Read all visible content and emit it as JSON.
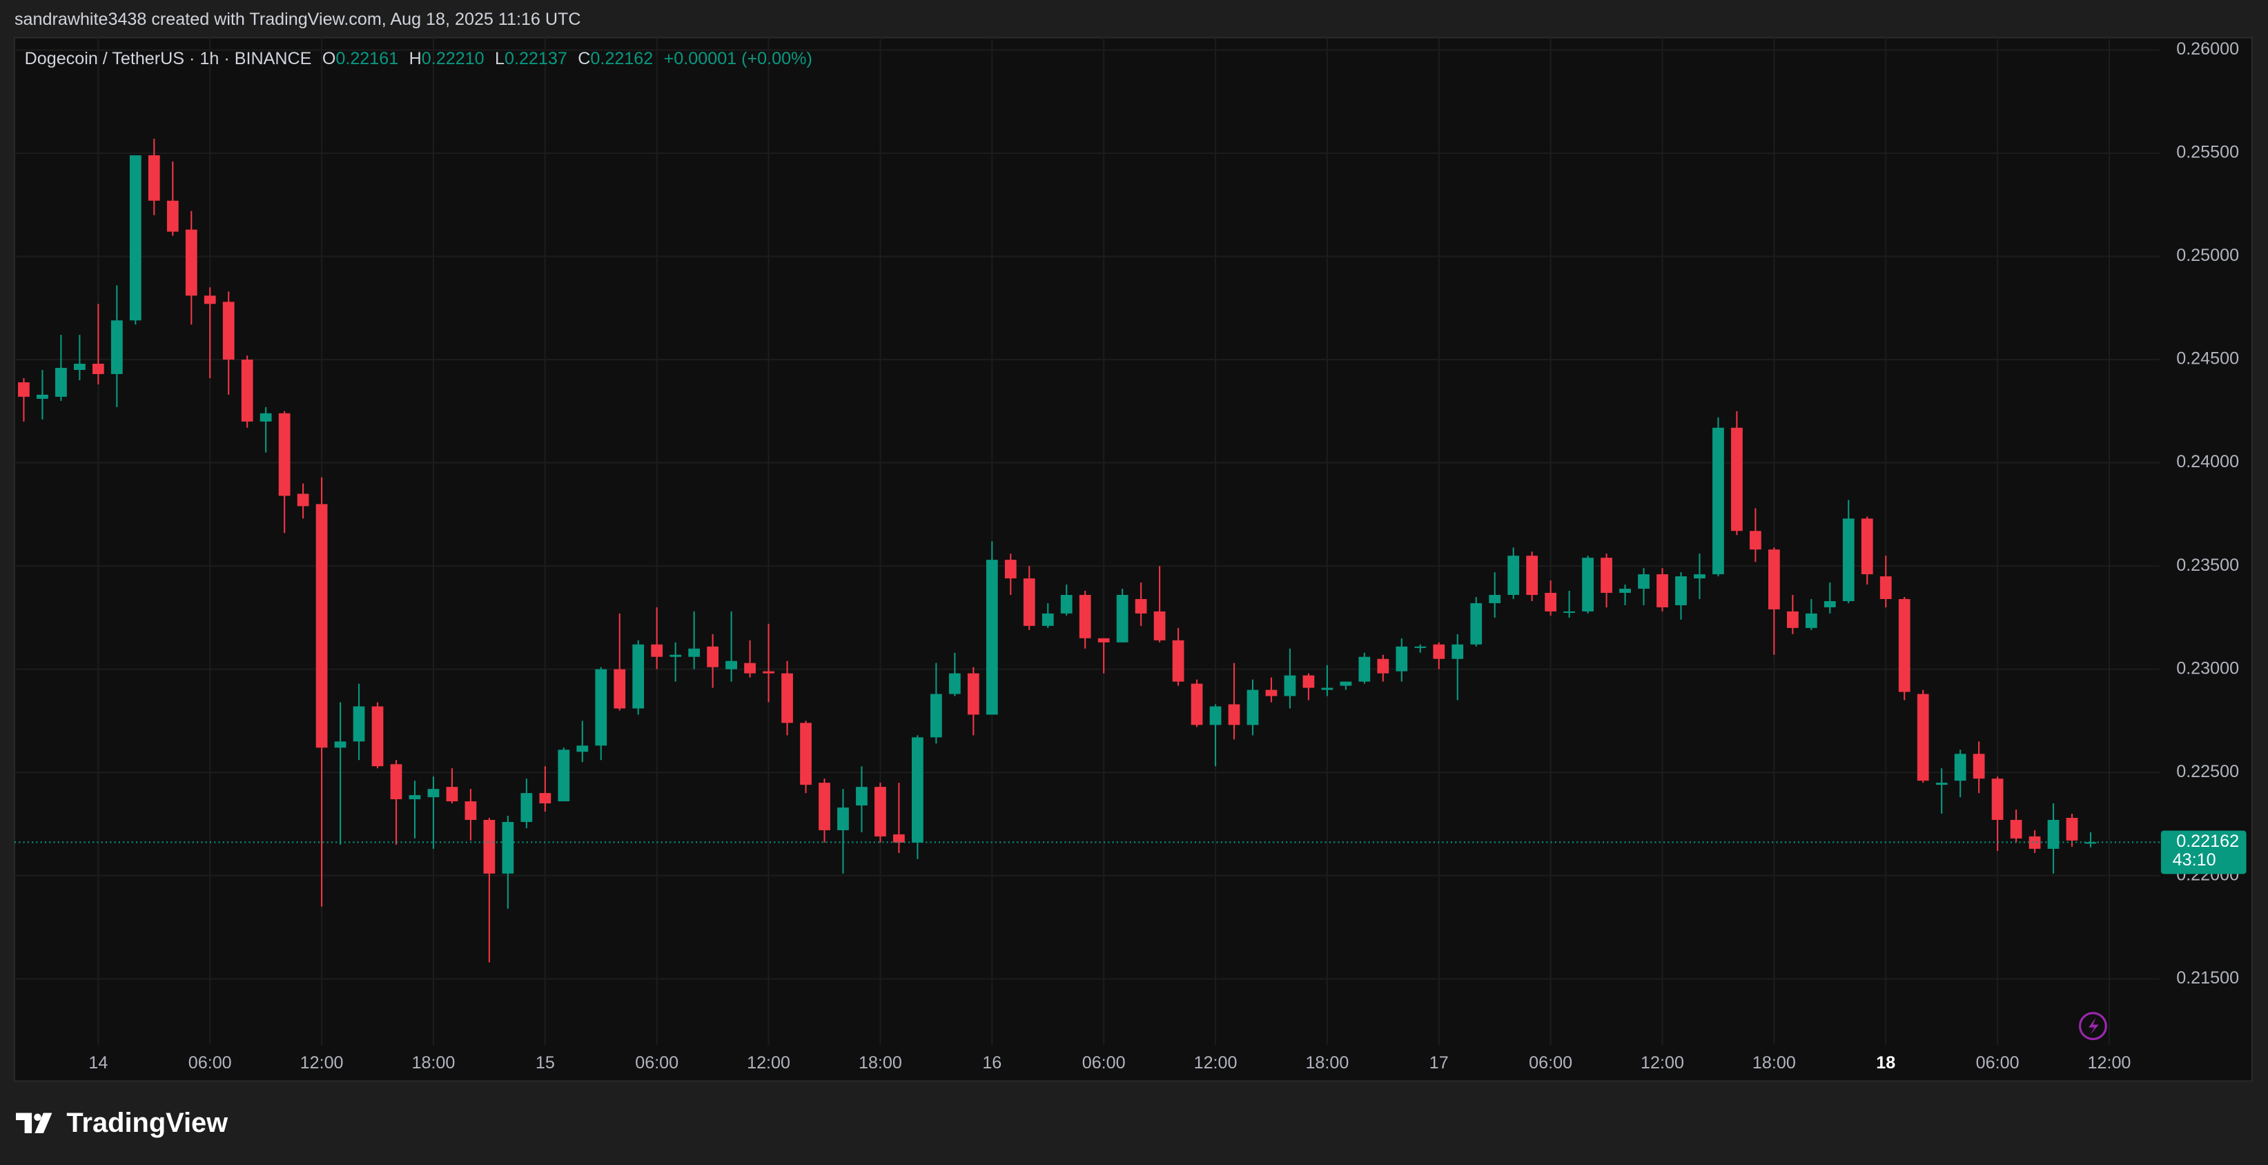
{
  "header": {
    "text": "sandrawhite3438 created with TradingView.com, Aug 18, 2025 11:16 UTC"
  },
  "footer": {
    "brand": "TradingView"
  },
  "chart_data": {
    "type": "candlestick",
    "legend": {
      "symbol": "Dogecoin / TetherUS · 1h · BINANCE",
      "o_label": "O",
      "open": "0.22161",
      "h_label": "H",
      "high": "0.22210",
      "l_label": "L",
      "low": "0.22137",
      "c_label": "C",
      "close": "0.22162",
      "change": "+0.00001 (+0.00%)"
    },
    "up_color": "#089981",
    "down_color": "#f23645",
    "open": [
      0.2439,
      0.2431,
      0.2432,
      0.2445,
      0.2448,
      0.2443,
      0.2469,
      0.2549,
      0.2527,
      0.2513,
      0.2481,
      0.2478,
      0.245,
      0.242,
      0.2424,
      0.2385,
      0.238,
      0.2262,
      0.2265,
      0.2282,
      0.2254,
      0.2237,
      0.2238,
      0.2243,
      0.2236,
      0.2227,
      0.2201,
      0.2226,
      0.224,
      0.2236,
      0.226,
      0.2263,
      0.23,
      0.2281,
      0.2312,
      0.2306,
      0.2306,
      0.2311,
      0.23,
      0.2303,
      0.2299,
      0.2298,
      0.2274,
      0.2245,
      0.2222,
      0.2234,
      0.2243,
      0.222,
      0.2216,
      0.2267,
      0.2288,
      0.2298,
      0.2278,
      0.2353,
      0.2344,
      0.2321,
      0.2327,
      0.2336,
      0.2315,
      0.2313,
      0.2334,
      0.2328,
      0.2314,
      0.2293,
      0.2273,
      0.2283,
      0.2273,
      0.229,
      0.2287,
      0.2297,
      0.229,
      0.2292,
      0.2294,
      0.2305,
      0.2299,
      0.2311,
      0.2312,
      0.2305,
      0.2312,
      0.2332,
      0.2336,
      0.2355,
      0.2337,
      0.2328,
      0.2328,
      0.2354,
      0.2337,
      0.2339,
      0.2346,
      0.2331,
      0.2344,
      0.2346,
      0.2417,
      0.2367,
      0.2358,
      0.2328,
      0.232,
      0.233,
      0.2333,
      0.2373,
      0.2345,
      0.2334,
      0.2288,
      0.2244,
      0.2246,
      0.2259,
      0.2247,
      0.2227,
      0.2219,
      0.2213,
      0.2228,
      0.22161
    ],
    "high": [
      0.2441,
      0.2445,
      0.2462,
      0.2462,
      0.2477,
      0.2486,
      0.2549,
      0.2557,
      0.2546,
      0.2522,
      0.2485,
      0.2483,
      0.2452,
      0.2427,
      0.2425,
      0.239,
      0.2393,
      0.2284,
      0.2293,
      0.2284,
      0.2256,
      0.2246,
      0.2248,
      0.2252,
      0.2242,
      0.2228,
      0.2229,
      0.2247,
      0.2253,
      0.2262,
      0.2275,
      0.2301,
      0.2327,
      0.2314,
      0.233,
      0.2313,
      0.2328,
      0.2317,
      0.2328,
      0.2314,
      0.2322,
      0.2304,
      0.2275,
      0.2247,
      0.2242,
      0.2253,
      0.2245,
      0.2245,
      0.2268,
      0.2303,
      0.2308,
      0.2301,
      0.2362,
      0.2356,
      0.235,
      0.2332,
      0.2341,
      0.2338,
      0.2315,
      0.2339,
      0.2342,
      0.235,
      0.232,
      0.2295,
      0.2283,
      0.2303,
      0.2295,
      0.2296,
      0.231,
      0.2298,
      0.2302,
      0.2294,
      0.2308,
      0.2307,
      0.2315,
      0.2312,
      0.2313,
      0.2317,
      0.2335,
      0.2347,
      0.2359,
      0.2357,
      0.2343,
      0.2338,
      0.2355,
      0.2356,
      0.2341,
      0.2349,
      0.2349,
      0.2347,
      0.2356,
      0.2422,
      0.2425,
      0.2378,
      0.2359,
      0.2336,
      0.2334,
      0.2342,
      0.2382,
      0.2374,
      0.2355,
      0.2335,
      0.229,
      0.2252,
      0.2261,
      0.2265,
      0.2248,
      0.2232,
      0.2222,
      0.2235,
      0.223,
      0.2221
    ],
    "low": [
      0.242,
      0.2421,
      0.243,
      0.244,
      0.2438,
      0.2427,
      0.2467,
      0.252,
      0.251,
      0.2467,
      0.2441,
      0.2433,
      0.2417,
      0.2405,
      0.2366,
      0.2373,
      0.2185,
      0.2215,
      0.2256,
      0.2252,
      0.2215,
      0.2218,
      0.2213,
      0.2235,
      0.2217,
      0.2158,
      0.2184,
      0.2223,
      0.2231,
      0.2236,
      0.2255,
      0.2256,
      0.228,
      0.2278,
      0.23,
      0.2294,
      0.23,
      0.2291,
      0.2294,
      0.2296,
      0.2284,
      0.2268,
      0.224,
      0.2216,
      0.2201,
      0.2221,
      0.2216,
      0.2211,
      0.2208,
      0.2264,
      0.2287,
      0.2268,
      0.2278,
      0.2336,
      0.2319,
      0.232,
      0.2326,
      0.231,
      0.2298,
      0.2313,
      0.2321,
      0.2313,
      0.2292,
      0.2272,
      0.2253,
      0.2266,
      0.2268,
      0.2284,
      0.2281,
      0.2285,
      0.2287,
      0.229,
      0.2293,
      0.2294,
      0.2294,
      0.2308,
      0.23,
      0.2285,
      0.2311,
      0.2325,
      0.2334,
      0.2333,
      0.2326,
      0.2325,
      0.2327,
      0.233,
      0.2331,
      0.2331,
      0.2328,
      0.2324,
      0.2334,
      0.2345,
      0.2365,
      0.2352,
      0.2307,
      0.2317,
      0.2319,
      0.2327,
      0.2332,
      0.2341,
      0.233,
      0.2285,
      0.2245,
      0.223,
      0.2238,
      0.224,
      0.2212,
      0.2216,
      0.2211,
      0.2201,
      0.2214,
      0.22137
    ],
    "close": [
      0.2432,
      0.2433,
      0.2446,
      0.2448,
      0.2443,
      0.2469,
      0.2549,
      0.2527,
      0.2512,
      0.2481,
      0.2477,
      0.245,
      0.242,
      0.2424,
      0.2384,
      0.2379,
      0.2262,
      0.2265,
      0.2282,
      0.2253,
      0.2237,
      0.2239,
      0.2242,
      0.2236,
      0.2227,
      0.2201,
      0.2226,
      0.224,
      0.2235,
      0.2261,
      0.2263,
      0.23,
      0.2281,
      0.2312,
      0.2306,
      0.2307,
      0.231,
      0.2301,
      0.2304,
      0.2298,
      0.2298,
      0.2274,
      0.2244,
      0.2222,
      0.2233,
      0.2243,
      0.2219,
      0.2216,
      0.2267,
      0.2288,
      0.2298,
      0.2278,
      0.2353,
      0.2344,
      0.2321,
      0.2327,
      0.2336,
      0.2315,
      0.2313,
      0.2336,
      0.2327,
      0.2314,
      0.2294,
      0.2273,
      0.2282,
      0.2273,
      0.229,
      0.2287,
      0.2297,
      0.2291,
      0.2291,
      0.2294,
      0.2306,
      0.2298,
      0.2311,
      0.2311,
      0.2305,
      0.2312,
      0.2332,
      0.2336,
      0.2355,
      0.2336,
      0.2328,
      0.2328,
      0.2354,
      0.2337,
      0.2339,
      0.2346,
      0.233,
      0.2345,
      0.2346,
      0.2417,
      0.2367,
      0.2358,
      0.2329,
      0.232,
      0.2327,
      0.2333,
      0.2373,
      0.2346,
      0.2334,
      0.2289,
      0.2246,
      0.2245,
      0.2259,
      0.2247,
      0.2227,
      0.2218,
      0.2213,
      0.2227,
      0.2217,
      0.22162
    ],
    "last_price": {
      "value": 0.22162,
      "label": "0.22162"
    },
    "countdown": "43:10",
    "xlim": [
      -0.5,
      114.7
    ],
    "xticks": [
      {
        "value": 4,
        "label": "14"
      },
      {
        "value": 10,
        "label": "06:00"
      },
      {
        "value": 16,
        "label": "12:00"
      },
      {
        "value": 22,
        "label": "18:00"
      },
      {
        "value": 28,
        "label": "15"
      },
      {
        "value": 34,
        "label": "06:00"
      },
      {
        "value": 40,
        "label": "12:00"
      },
      {
        "value": 46,
        "label": "18:00"
      },
      {
        "value": 52,
        "label": "16"
      },
      {
        "value": 58,
        "label": "06:00"
      },
      {
        "value": 64,
        "label": "12:00"
      },
      {
        "value": 70,
        "label": "18:00"
      },
      {
        "value": 76,
        "label": "17"
      },
      {
        "value": 82,
        "label": "06:00"
      },
      {
        "value": 88,
        "label": "12:00"
      },
      {
        "value": 94,
        "label": "18:00"
      },
      {
        "value": 100,
        "label": "18"
      },
      {
        "value": 106,
        "label": "06:00"
      },
      {
        "value": 112,
        "label": "12:00"
      }
    ],
    "ylim": [
      0.2118,
      0.2606
    ],
    "yticks": [
      {
        "value": 0.215,
        "label": "0.21500"
      },
      {
        "value": 0.22,
        "label": "0.22000"
      },
      {
        "value": 0.225,
        "label": "0.22500"
      },
      {
        "value": 0.23,
        "label": "0.23000"
      },
      {
        "value": 0.235,
        "label": "0.23500"
      },
      {
        "value": 0.24,
        "label": "0.24000"
      },
      {
        "value": 0.245,
        "label": "0.24500"
      },
      {
        "value": 0.25,
        "label": "0.25000"
      },
      {
        "value": 0.255,
        "label": "0.25500"
      },
      {
        "value": 0.26,
        "label": "0.26000"
      }
    ],
    "grid": true
  }
}
